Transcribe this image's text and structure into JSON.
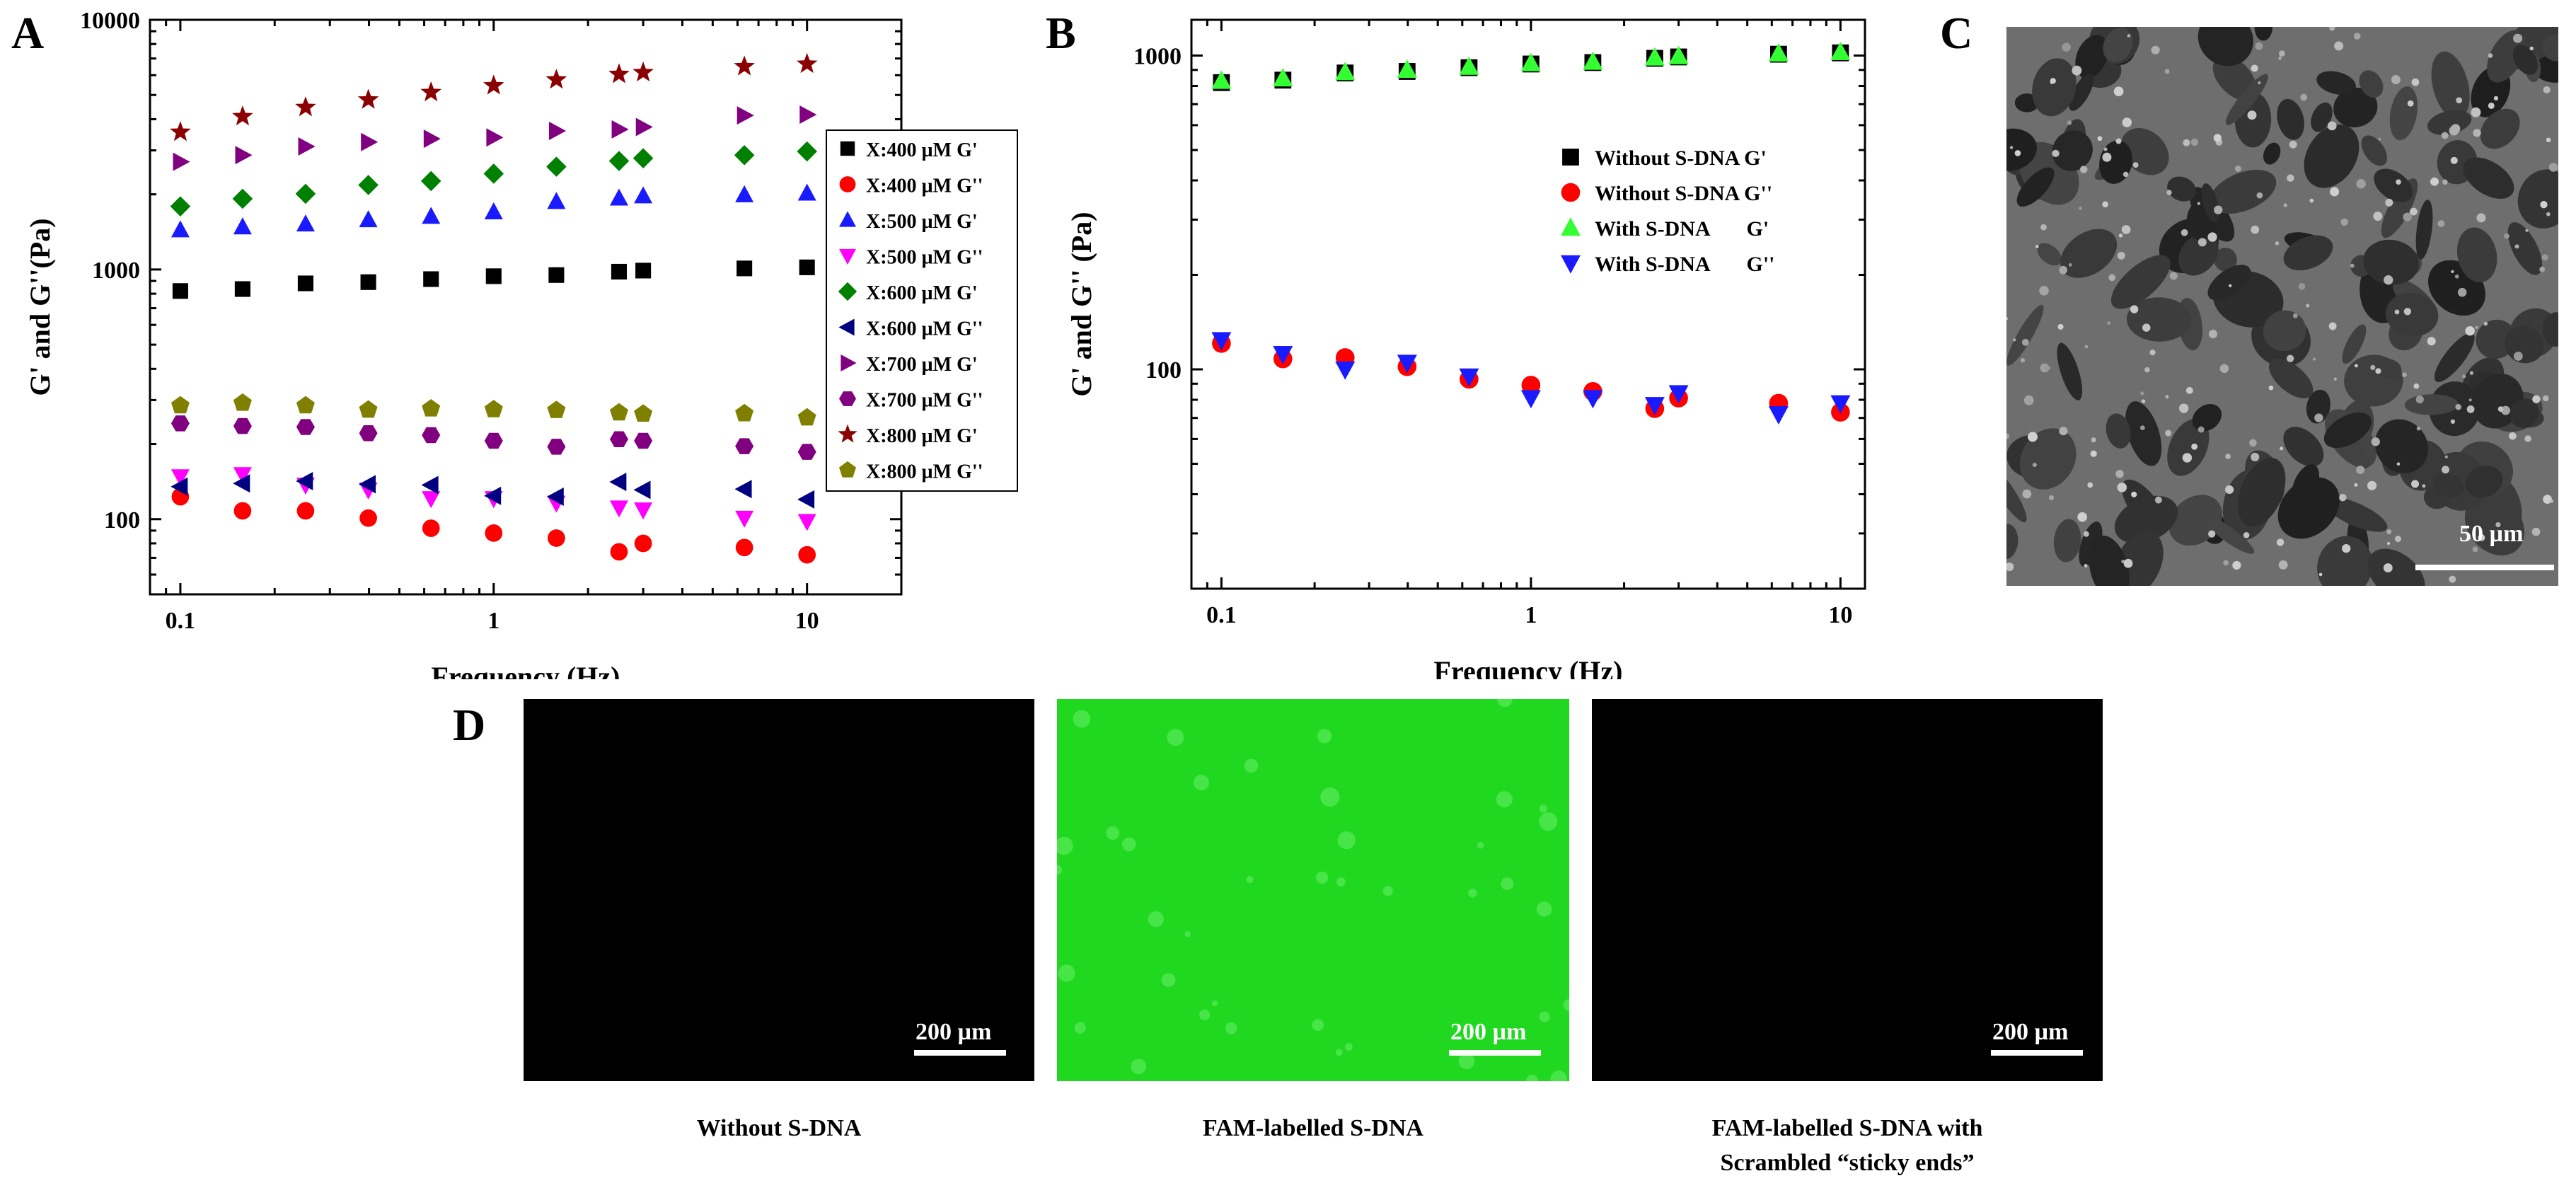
{
  "panels": {
    "a": {
      "letter": "A"
    },
    "b": {
      "letter": "B"
    },
    "c": {
      "letter": "C",
      "scale_label": "50 µm"
    },
    "d": {
      "letter": "D"
    }
  },
  "fluorescence": [
    {
      "caption_line1": "Without S-DNA",
      "caption_line2": "",
      "scale_label": "200 µm",
      "color": "#000000"
    },
    {
      "caption_line1": "FAM-labelled S-DNA",
      "caption_line2": "",
      "scale_label": "200 µm",
      "color": "#1fd81f"
    },
    {
      "caption_line1": "FAM-labelled S-DNA with",
      "caption_line2": "Scrambled “sticky ends”",
      "scale_label": "200 µm",
      "color": "#000000"
    }
  ],
  "chart_data": [
    {
      "type": "scatter",
      "panel": "A",
      "xlabel": "Frequency (Hz)",
      "ylabel": "G' and G''(Pa)",
      "xscale": "log",
      "yscale": "log",
      "xlim": [
        0.08,
        20
      ],
      "ylim": [
        50,
        10000
      ],
      "xticks": [
        {
          "v": 0.1,
          "label": "0.1"
        },
        {
          "v": 1,
          "label": "1"
        },
        {
          "v": 10,
          "label": "10"
        }
      ],
      "yticks": [
        {
          "v": 100,
          "label": "100"
        },
        {
          "v": 1000,
          "label": "1000"
        },
        {
          "v": 10000,
          "label": "10000"
        }
      ],
      "legend_position": "right",
      "x": [
        0.1,
        0.158,
        0.251,
        0.398,
        0.631,
        1,
        1.585,
        2.512,
        3.0,
        6.31,
        10
      ],
      "series": [
        {
          "name": "X:400 µM G'",
          "marker": "square",
          "color": "#000000",
          "values": [
            820,
            835,
            880,
            890,
            915,
            940,
            950,
            980,
            990,
            1010,
            1020
          ]
        },
        {
          "name": "X:400 µM G''",
          "marker": "circle",
          "color": "#ff0000",
          "values": [
            123,
            108,
            108,
            101,
            92,
            88,
            84,
            74,
            80,
            77,
            72
          ]
        },
        {
          "name": "X:500 µM G'",
          "marker": "triangle-up",
          "color": "#1a1aff",
          "values": [
            1440,
            1480,
            1520,
            1580,
            1630,
            1700,
            1870,
            1930,
            1970,
            1990,
            2020
          ]
        },
        {
          "name": "X:500 µM G''",
          "marker": "triangle-down",
          "color": "#ff00ff",
          "values": [
            148,
            151,
            137,
            131,
            121,
            121,
            116,
            111,
            109,
            101,
            98
          ]
        },
        {
          "name": "X:600 µM G'",
          "marker": "diamond",
          "color": "#008000",
          "values": [
            1790,
            1920,
            2010,
            2180,
            2260,
            2420,
            2580,
            2720,
            2790,
            2870,
            2970
          ]
        },
        {
          "name": "X:600 µM G''",
          "marker": "triangle-left",
          "color": "#000080",
          "values": [
            135,
            139,
            142,
            138,
            137,
            124,
            123,
            141,
            131,
            132,
            120
          ]
        },
        {
          "name": "X:700 µM G'",
          "marker": "triangle-right",
          "color": "#800080",
          "values": [
            2700,
            2870,
            3110,
            3240,
            3340,
            3380,
            3590,
            3640,
            3720,
            4140,
            4170
          ]
        },
        {
          "name": "X:700 µM G''",
          "marker": "hexagon",
          "color": "#800080",
          "values": [
            242,
            236,
            234,
            221,
            217,
            206,
            195,
            209,
            206,
            196,
            186
          ]
        },
        {
          "name": "X:800 µM G'",
          "marker": "star",
          "color": "#8b0000",
          "values": [
            3550,
            4100,
            4460,
            4780,
            5120,
            5450,
            5750,
            6050,
            6150,
            6500,
            6650
          ]
        },
        {
          "name": "X:800 µM G''",
          "marker": "pentagon",
          "color": "#808000",
          "values": [
            285,
            292,
            285,
            274,
            277,
            275,
            273,
            267,
            264,
            265,
            255
          ]
        }
      ]
    },
    {
      "type": "scatter",
      "panel": "B",
      "xlabel": "Frequency (Hz)",
      "ylabel": "G' and G'' (Pa)",
      "xscale": "log",
      "yscale": "log",
      "xlim": [
        0.08,
        12
      ],
      "ylim": [
        20,
        1300
      ],
      "xticks": [
        {
          "v": 0.1,
          "label": "0.1"
        },
        {
          "v": 1,
          "label": "1"
        },
        {
          "v": 10,
          "label": "10"
        }
      ],
      "yticks": [
        {
          "v": 100,
          "label": "100"
        },
        {
          "v": 1000,
          "label": "1000"
        }
      ],
      "legend_position": "right",
      "x": [
        0.1,
        0.158,
        0.251,
        0.398,
        0.631,
        1,
        1.585,
        2.512,
        3.0,
        6.31,
        10
      ],
      "series": [
        {
          "name": "Without S-DNA G'",
          "marker": "square",
          "color": "#000000",
          "values": [
            820,
            835,
            880,
            890,
            915,
            940,
            950,
            980,
            990,
            1010,
            1020
          ]
        },
        {
          "name": "Without S-DNA G''",
          "marker": "circle",
          "color": "#ff0000",
          "values": [
            121,
            108,
            109,
            102,
            93,
            89,
            85,
            75,
            81,
            78,
            73
          ]
        },
        {
          "name": "With S-DNA       G'",
          "marker": "triangle-up",
          "color": "#33ff33",
          "values": [
            830,
            845,
            885,
            900,
            920,
            945,
            955,
            985,
            995,
            1015,
            1025
          ]
        },
        {
          "name": "With S-DNA       G''",
          "marker": "triangle-down",
          "color": "#1a1aff",
          "values": [
            124,
            112,
            100,
            105,
            95,
            81,
            81,
            77,
            84,
            72,
            78
          ]
        }
      ]
    }
  ]
}
